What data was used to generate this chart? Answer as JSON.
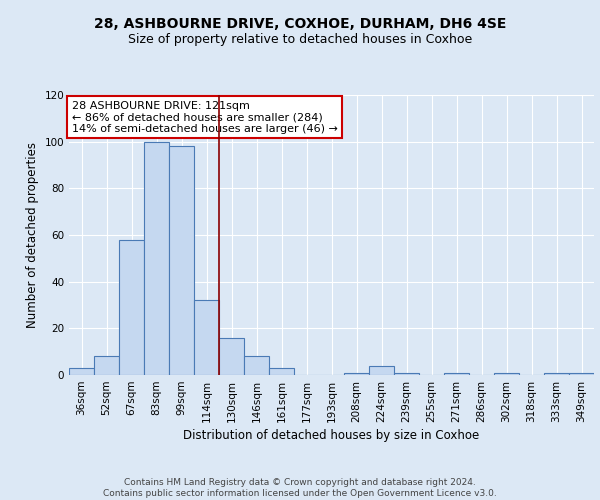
{
  "title1": "28, ASHBOURNE DRIVE, COXHOE, DURHAM, DH6 4SE",
  "title2": "Size of property relative to detached houses in Coxhoe",
  "xlabel": "Distribution of detached houses by size in Coxhoe",
  "ylabel": "Number of detached properties",
  "categories": [
    "36sqm",
    "52sqm",
    "67sqm",
    "83sqm",
    "99sqm",
    "114sqm",
    "130sqm",
    "146sqm",
    "161sqm",
    "177sqm",
    "193sqm",
    "208sqm",
    "224sqm",
    "239sqm",
    "255sqm",
    "271sqm",
    "286sqm",
    "302sqm",
    "318sqm",
    "333sqm",
    "349sqm"
  ],
  "values": [
    3,
    8,
    58,
    100,
    98,
    32,
    16,
    8,
    3,
    0,
    0,
    1,
    4,
    1,
    0,
    1,
    0,
    1,
    0,
    1,
    1
  ],
  "bar_color": "#c5d8f0",
  "bar_edge_color": "#4a7ab5",
  "bar_linewidth": 0.8,
  "vline_x": 5.5,
  "vline_color": "#8b0000",
  "ylim": [
    0,
    120
  ],
  "yticks": [
    0,
    20,
    40,
    60,
    80,
    100,
    120
  ],
  "annotation_text": "28 ASHBOURNE DRIVE: 121sqm\n← 86% of detached houses are smaller (284)\n14% of semi-detached houses are larger (46) →",
  "annotation_box_color": "#ffffff",
  "annotation_box_edgecolor": "#cc0000",
  "footer_text": "Contains HM Land Registry data © Crown copyright and database right 2024.\nContains public sector information licensed under the Open Government Licence v3.0.",
  "bg_color": "#dce8f5",
  "plot_bg_color": "#dce8f5",
  "title_fontsize": 10,
  "subtitle_fontsize": 9,
  "axis_label_fontsize": 8.5,
  "tick_fontsize": 7.5,
  "footer_fontsize": 6.5,
  "annot_fontsize": 8
}
